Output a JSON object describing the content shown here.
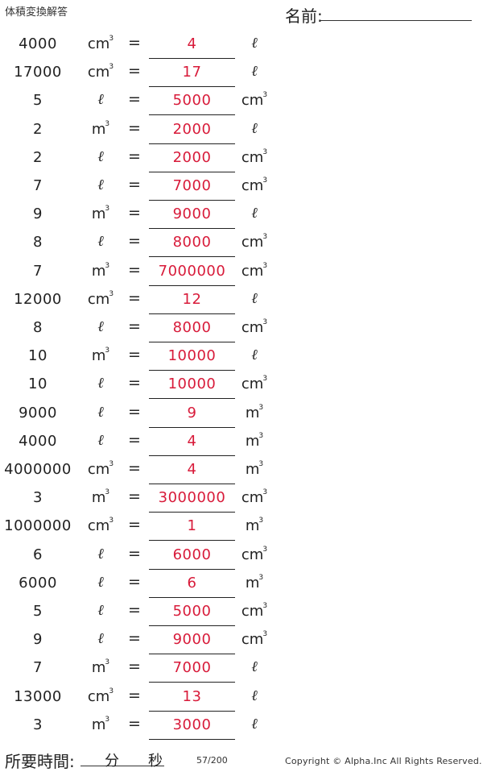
{
  "header": {
    "title": "体積変換解答",
    "name_label": "名前:"
  },
  "rows": [
    {
      "value": "4000",
      "from": "cm3",
      "equals": "=",
      "answer": "4",
      "to": "l"
    },
    {
      "value": "17000",
      "from": "cm3",
      "equals": "=",
      "answer": "17",
      "to": "l"
    },
    {
      "value": "5",
      "from": "l",
      "equals": "=",
      "answer": "5000",
      "to": "cm3"
    },
    {
      "value": "2",
      "from": "m3",
      "equals": "=",
      "answer": "2000",
      "to": "l"
    },
    {
      "value": "2",
      "from": "l",
      "equals": "=",
      "answer": "2000",
      "to": "cm3"
    },
    {
      "value": "7",
      "from": "l",
      "equals": "=",
      "answer": "7000",
      "to": "cm3"
    },
    {
      "value": "9",
      "from": "m3",
      "equals": "=",
      "answer": "9000",
      "to": "l"
    },
    {
      "value": "8",
      "from": "l",
      "equals": "=",
      "answer": "8000",
      "to": "cm3"
    },
    {
      "value": "7",
      "from": "m3",
      "equals": "=",
      "answer": "7000000",
      "to": "cm3"
    },
    {
      "value": "12000",
      "from": "cm3",
      "equals": "=",
      "answer": "12",
      "to": "l"
    },
    {
      "value": "8",
      "from": "l",
      "equals": "=",
      "answer": "8000",
      "to": "cm3"
    },
    {
      "value": "10",
      "from": "m3",
      "equals": "=",
      "answer": "10000",
      "to": "l"
    },
    {
      "value": "10",
      "from": "l",
      "equals": "=",
      "answer": "10000",
      "to": "cm3"
    },
    {
      "value": "9000",
      "from": "l",
      "equals": "=",
      "answer": "9",
      "to": "m3"
    },
    {
      "value": "4000",
      "from": "l",
      "equals": "=",
      "answer": "4",
      "to": "m3"
    },
    {
      "value": "4000000",
      "from": "cm3",
      "equals": "=",
      "answer": "4",
      "to": "m3"
    },
    {
      "value": "3",
      "from": "m3",
      "equals": "=",
      "answer": "3000000",
      "to": "cm3"
    },
    {
      "value": "1000000",
      "from": "cm3",
      "equals": "=",
      "answer": "1",
      "to": "m3"
    },
    {
      "value": "6",
      "from": "l",
      "equals": "=",
      "answer": "6000",
      "to": "cm3"
    },
    {
      "value": "6000",
      "from": "l",
      "equals": "=",
      "answer": "6",
      "to": "m3"
    },
    {
      "value": "5",
      "from": "l",
      "equals": "=",
      "answer": "5000",
      "to": "cm3"
    },
    {
      "value": "9",
      "from": "l",
      "equals": "=",
      "answer": "9000",
      "to": "cm3"
    },
    {
      "value": "7",
      "from": "m3",
      "equals": "=",
      "answer": "7000",
      "to": "l"
    },
    {
      "value": "13000",
      "from": "cm3",
      "equals": "=",
      "answer": "13",
      "to": "l"
    },
    {
      "value": "3",
      "from": "m3",
      "equals": "=",
      "answer": "3000",
      "to": "l"
    }
  ],
  "footer": {
    "time_label": "所要時間:",
    "minutes_label": "分",
    "seconds_label": "秒",
    "page": "57/200",
    "copyright": "Copyright © Alpha.Inc All Rights Reserved."
  },
  "colors": {
    "answer": "#d81b3a",
    "text": "#222222"
  }
}
